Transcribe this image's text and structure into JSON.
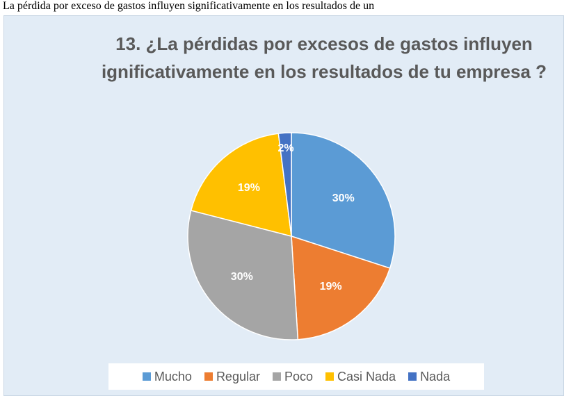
{
  "caption": ". La pérdida por exceso de gastos influyen significativamente en los resultados de un",
  "chart_data": {
    "type": "pie",
    "title": "13. ¿La pérdidas por excesos de gastos influyen ignificativamente en los resultados de tu empresa ?",
    "categories": [
      "Mucho",
      "Regular",
      "Poco",
      "Casi Nada",
      "Nada"
    ],
    "values": [
      30,
      19,
      30,
      19,
      2
    ],
    "value_labels": [
      "30%",
      "19%",
      "30%",
      "19%",
      "2%"
    ],
    "colors": [
      "#5b9bd5",
      "#ed7d31",
      "#a5a5a5",
      "#ffc000",
      "#4472c4"
    ],
    "legend": "bottom"
  }
}
